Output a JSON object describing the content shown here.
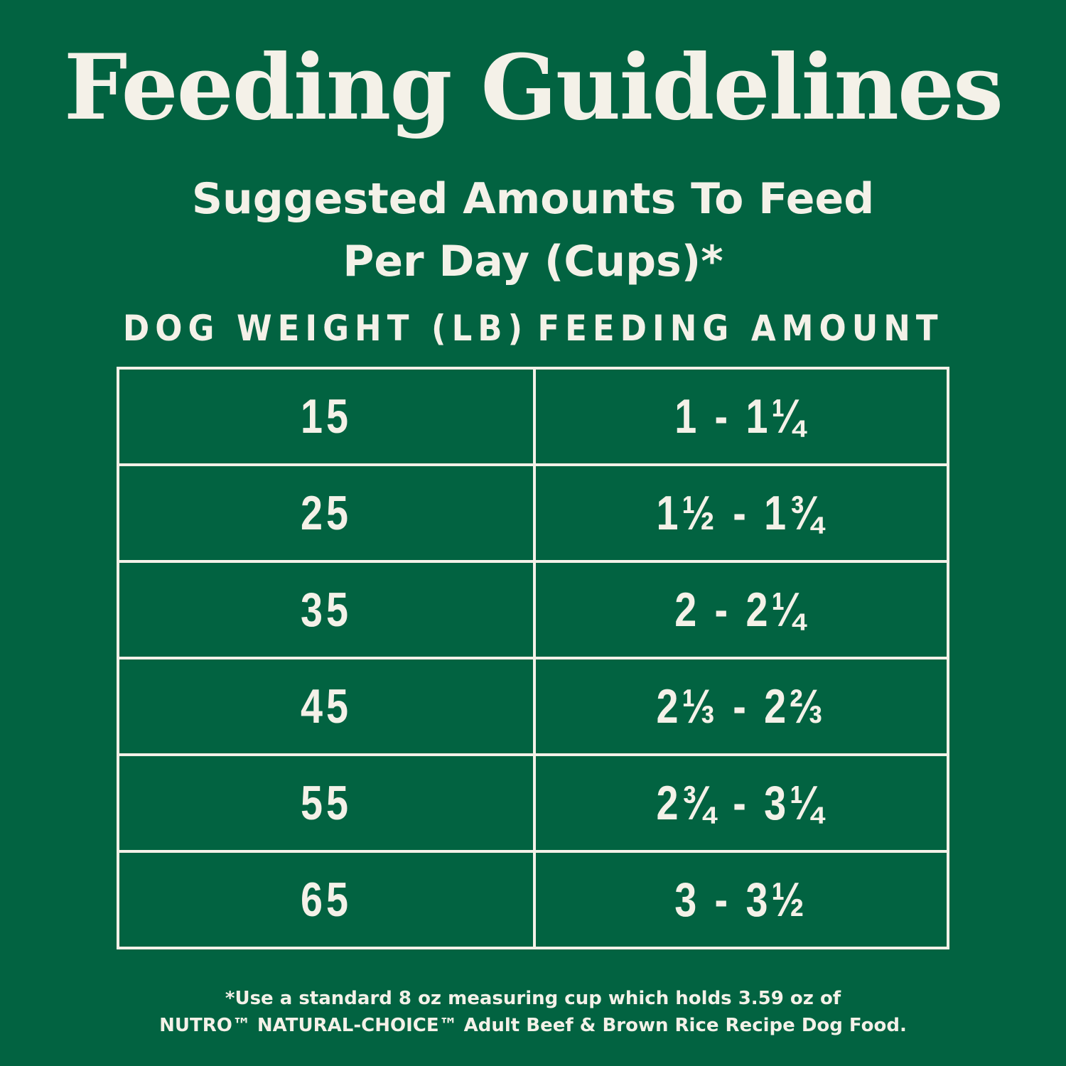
{
  "colors": {
    "background": "#026341",
    "text": "#f4f1e8"
  },
  "title": "Feeding Guidelines",
  "subtitle": {
    "line1": "Suggested Amounts To Feed",
    "line2": "Per Day (Cups)*"
  },
  "table": {
    "headers": {
      "weight": "DOG WEIGHT (LB)",
      "amount": "FEEDING AMOUNT"
    },
    "rows": [
      {
        "weight": "15",
        "amount": "1 - 1¼"
      },
      {
        "weight": "25",
        "amount": "1½ - 1¾"
      },
      {
        "weight": "35",
        "amount": "2 - 2¼"
      },
      {
        "weight": "45",
        "amount": "2⅓ - 2⅔"
      },
      {
        "weight": "55",
        "amount": "2¾ - 3¼"
      },
      {
        "weight": "65",
        "amount": "3 - 3½"
      }
    ]
  },
  "footnote": {
    "line1": "*Use a standard 8 oz measuring cup which holds 3.59 oz of",
    "line2": "NUTRO™ NATURAL-CHOICE™ Adult Beef & Brown Rice Recipe Dog Food."
  }
}
